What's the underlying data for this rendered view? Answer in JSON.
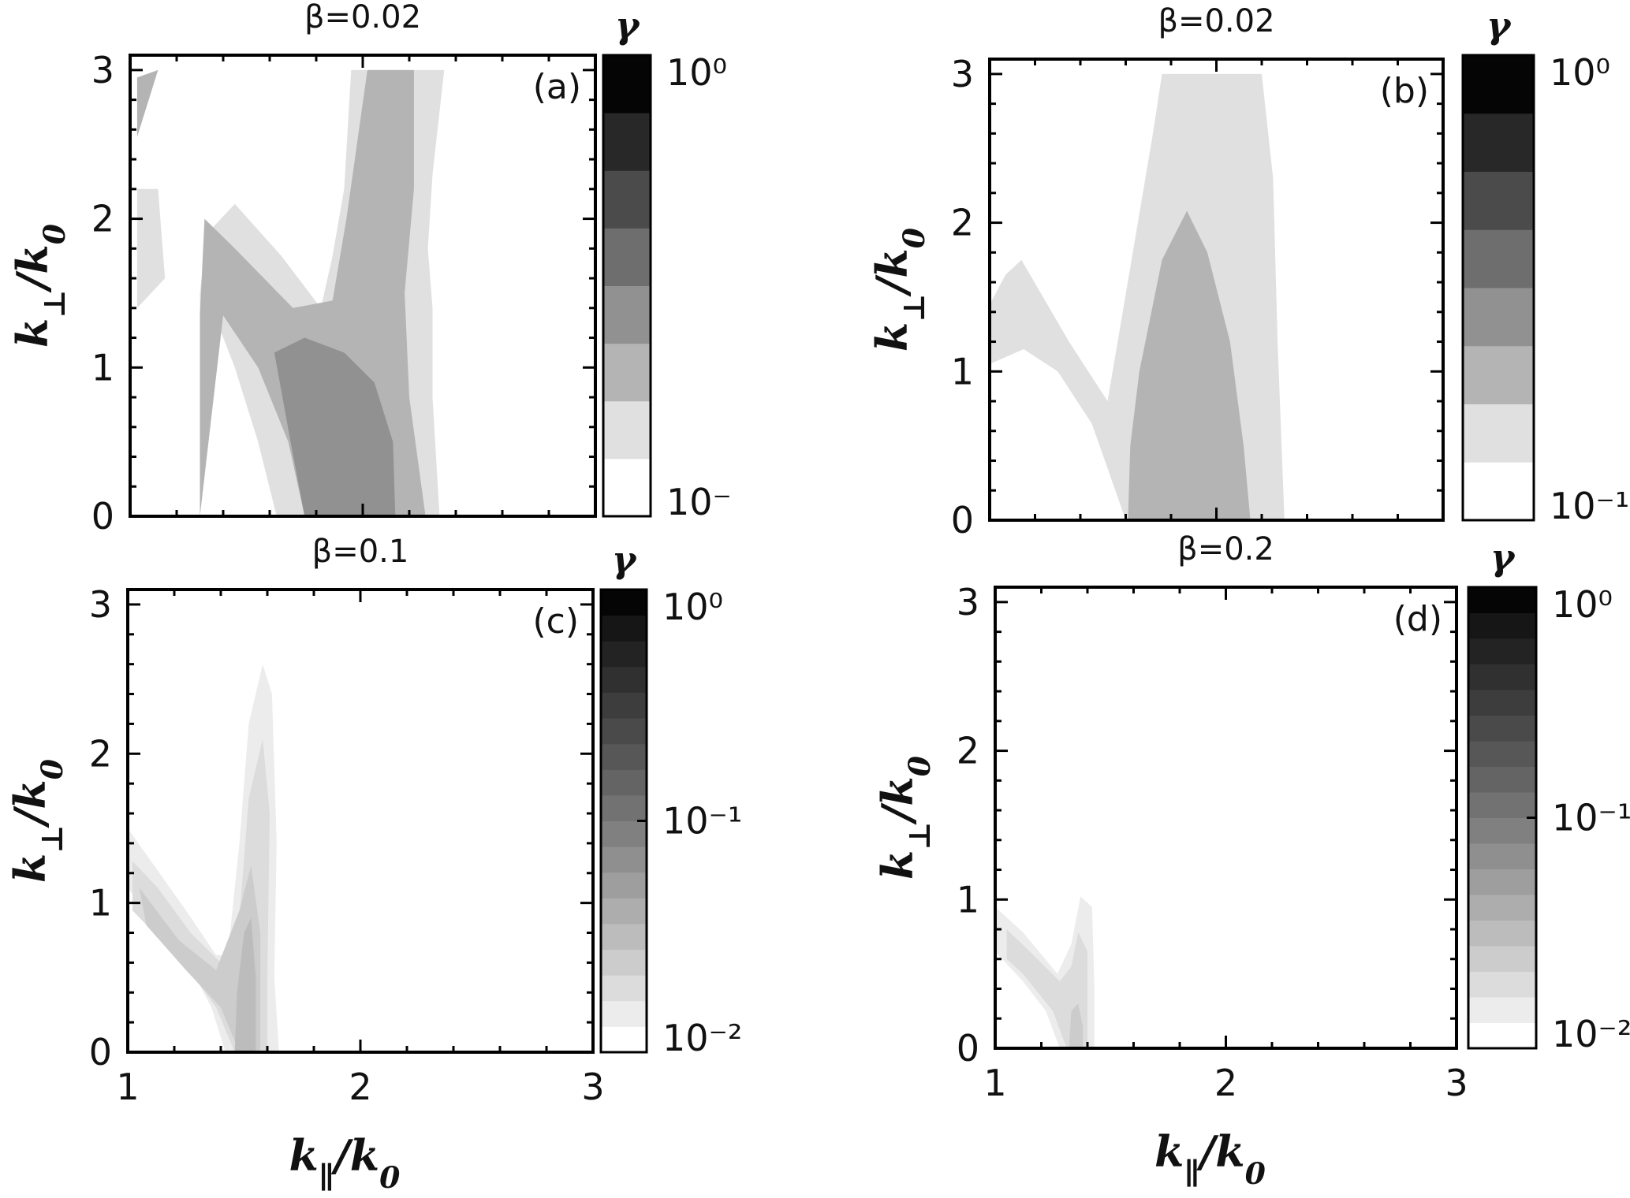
{
  "chart_data": [
    {
      "type": "heatmap",
      "panel_label": "(a)",
      "title": "β=0.02",
      "xlabel": "",
      "ylabel": "k⊥/k0",
      "xlim": [
        1,
        3
      ],
      "ylim": [
        0,
        3.1
      ],
      "xticks": [],
      "yticks": [
        "0",
        "1",
        "2",
        "3"
      ],
      "colorbar": {
        "label": "γ",
        "scale": "log",
        "levels": [
          "#ffffff",
          "#e0e0e0",
          "#b4b4b4",
          "#919191",
          "#6e6e6e",
          "#4b4b4b",
          "#282828",
          "#050505"
        ],
        "tick_labels": [
          "10⁰",
          "10⁻"
        ]
      },
      "regions": [
        {
          "level": 1,
          "description": "light outer band",
          "polygons": [
            [
              [
                1.3,
                0
              ],
              [
                1.3,
                1.5
              ],
              [
                1.33,
                1.9
              ],
              [
                1.45,
                2.1
              ],
              [
                1.65,
                1.75
              ],
              [
                1.82,
                1.4
              ],
              [
                1.87,
                1.75
              ],
              [
                1.92,
                2.2
              ],
              [
                1.95,
                3.0
              ],
              [
                2.35,
                3.0
              ],
              [
                2.3,
                2.3
              ],
              [
                2.28,
                1.8
              ],
              [
                2.3,
                1.4
              ],
              [
                2.3,
                0.8
              ],
              [
                2.33,
                0
              ],
              [
                1.63,
                0
              ],
              [
                1.55,
                0.5
              ],
              [
                1.45,
                1.0
              ],
              [
                1.35,
                1.4
              ]
            ],
            [
              [
                1.03,
                1.4
              ],
              [
                1.03,
                2.2
              ],
              [
                1.12,
                2.2
              ],
              [
                1.15,
                1.6
              ]
            ]
          ]
        },
        {
          "level": 2,
          "description": "middle band",
          "polygons": [
            [
              [
                1.3,
                0
              ],
              [
                1.3,
                1.35
              ],
              [
                1.32,
                2.0
              ],
              [
                1.45,
                1.8
              ],
              [
                1.7,
                1.4
              ],
              [
                1.87,
                1.45
              ],
              [
                1.93,
                2.0
              ],
              [
                2.02,
                3.0
              ],
              [
                2.22,
                3.0
              ],
              [
                2.22,
                2.2
              ],
              [
                2.18,
                1.5
              ],
              [
                2.2,
                0.8
              ],
              [
                2.27,
                0
              ],
              [
                1.75,
                0
              ],
              [
                1.68,
                0.5
              ],
              [
                1.55,
                1.0
              ],
              [
                1.4,
                1.35
              ]
            ],
            [
              [
                1.03,
                2.55
              ],
              [
                1.03,
                2.95
              ],
              [
                1.12,
                3.0
              ]
            ]
          ]
        },
        {
          "level": 3,
          "description": "darker core",
          "polygons": [
            [
              [
                1.75,
                0
              ],
              [
                1.69,
                0.5
              ],
              [
                1.62,
                1.1
              ],
              [
                1.75,
                1.2
              ],
              [
                1.92,
                1.1
              ],
              [
                2.05,
                0.9
              ],
              [
                2.13,
                0.5
              ],
              [
                2.14,
                0
              ]
            ]
          ]
        }
      ]
    },
    {
      "type": "heatmap",
      "panel_label": "(b)",
      "title": "β=0.02",
      "xlabel": "",
      "ylabel": "k⊥/k0",
      "xlim": [
        1,
        3
      ],
      "ylim": [
        0,
        3.1
      ],
      "xticks": [],
      "yticks": [
        "0",
        "1",
        "2",
        "3"
      ],
      "colorbar": {
        "label": "γ",
        "scale": "log",
        "levels": [
          "#ffffff",
          "#e0e0e0",
          "#b4b4b4",
          "#919191",
          "#6e6e6e",
          "#4b4b4b",
          "#282828",
          "#050505"
        ],
        "tick_labels": [
          "10⁰",
          "10⁻¹"
        ]
      },
      "regions": [
        {
          "level": 1,
          "description": "light outer band",
          "polygons": [
            [
              [
                1.0,
                1.45
              ],
              [
                1.07,
                1.65
              ],
              [
                1.14,
                1.75
              ],
              [
                1.35,
                1.2
              ],
              [
                1.52,
                0.8
              ],
              [
                1.62,
                1.7
              ],
              [
                1.72,
                2.6
              ],
              [
                1.76,
                3.0
              ],
              [
                2.2,
                3.0
              ],
              [
                2.25,
                2.3
              ],
              [
                2.27,
                1.2
              ],
              [
                2.3,
                0
              ],
              [
                1.6,
                0
              ],
              [
                1.52,
                0.35
              ],
              [
                1.45,
                0.65
              ],
              [
                1.3,
                1.0
              ],
              [
                1.15,
                1.15
              ],
              [
                1.0,
                1.05
              ]
            ]
          ]
        },
        {
          "level": 2,
          "description": "middle core",
          "polygons": [
            [
              [
                1.61,
                0
              ],
              [
                1.62,
                0.5
              ],
              [
                1.66,
                1.0
              ],
              [
                1.76,
                1.75
              ],
              [
                1.87,
                2.08
              ],
              [
                1.96,
                1.8
              ],
              [
                2.06,
                1.2
              ],
              [
                2.12,
                0.5
              ],
              [
                2.15,
                0
              ]
            ]
          ]
        }
      ]
    },
    {
      "type": "heatmap",
      "panel_label": "(c)",
      "title": "β=0.1",
      "xlabel": "k∥/k0",
      "ylabel": "k⊥/k0",
      "xlim": [
        1,
        3
      ],
      "ylim": [
        0,
        3.1
      ],
      "xticks": [
        "1",
        "2",
        "3"
      ],
      "yticks": [
        "0",
        "1",
        "2",
        "3"
      ],
      "colorbar": {
        "label": "γ",
        "scale": "log",
        "levels": [
          "#ffffff",
          "#ececec",
          "#dcdcdc",
          "#cccccc",
          "#bcbcbc",
          "#adadad",
          "#9e9e9e",
          "#8f8f8f",
          "#808080",
          "#727272",
          "#646464",
          "#575757",
          "#4a4a4a",
          "#3d3d3d",
          "#303030",
          "#232323",
          "#161616",
          "#050505"
        ],
        "tick_labels": [
          "10⁰",
          "10⁻¹",
          "10⁻²"
        ]
      },
      "regions": [
        {
          "level": 1,
          "description": "outer band",
          "polygons": [
            [
              [
                1.0,
                1.5
              ],
              [
                1.1,
                1.28
              ],
              [
                1.25,
                0.95
              ],
              [
                1.38,
                0.65
              ],
              [
                1.43,
                0.65
              ],
              [
                1.48,
                1.4
              ],
              [
                1.52,
                2.2
              ],
              [
                1.58,
                2.6
              ],
              [
                1.62,
                2.4
              ],
              [
                1.64,
                1.4
              ],
              [
                1.63,
                0.5
              ],
              [
                1.65,
                0
              ],
              [
                1.42,
                0
              ],
              [
                1.36,
                0.3
              ],
              [
                1.25,
                0.62
              ],
              [
                1.1,
                0.9
              ],
              [
                1.0,
                1.1
              ]
            ]
          ]
        },
        {
          "level": 2,
          "description": "inner band",
          "polygons": [
            [
              [
                1.02,
                1.28
              ],
              [
                1.13,
                1.1
              ],
              [
                1.27,
                0.8
              ],
              [
                1.4,
                0.6
              ],
              [
                1.48,
                0.9
              ],
              [
                1.52,
                1.7
              ],
              [
                1.58,
                2.1
              ],
              [
                1.61,
                1.6
              ],
              [
                1.6,
                0.5
              ],
              [
                1.6,
                0
              ],
              [
                1.46,
                0
              ],
              [
                1.38,
                0.3
              ],
              [
                1.25,
                0.58
              ],
              [
                1.1,
                0.82
              ],
              [
                1.02,
                0.95
              ]
            ]
          ]
        },
        {
          "level": 3,
          "description": "core",
          "polygons": [
            [
              [
                1.05,
                1.1
              ],
              [
                1.22,
                0.75
              ],
              [
                1.38,
                0.55
              ],
              [
                1.48,
                0.95
              ],
              [
                1.53,
                1.25
              ],
              [
                1.57,
                0.8
              ],
              [
                1.57,
                0
              ],
              [
                1.48,
                0
              ],
              [
                1.4,
                0.3
              ],
              [
                1.25,
                0.55
              ],
              [
                1.08,
                0.85
              ]
            ]
          ]
        },
        {
          "level": 4,
          "description": "inner core",
          "polygons": [
            [
              [
                1.46,
                0
              ],
              [
                1.47,
                0.4
              ],
              [
                1.5,
                0.8
              ],
              [
                1.53,
                0.9
              ],
              [
                1.55,
                0.5
              ],
              [
                1.55,
                0
              ]
            ]
          ]
        }
      ]
    },
    {
      "type": "heatmap",
      "panel_label": "(d)",
      "title": "β=0.2",
      "xlabel": "k∥/k0",
      "ylabel": "k⊥/k0",
      "xlim": [
        1,
        3
      ],
      "ylim": [
        0,
        3.1
      ],
      "xticks": [
        "1",
        "2",
        "3"
      ],
      "yticks": [
        "0",
        "1",
        "2",
        "3"
      ],
      "colorbar": {
        "label": "γ",
        "scale": "log",
        "levels": [
          "#ffffff",
          "#ececec",
          "#dcdcdc",
          "#cccccc",
          "#bcbcbc",
          "#adadad",
          "#9e9e9e",
          "#8f8f8f",
          "#808080",
          "#727272",
          "#646464",
          "#575757",
          "#4a4a4a",
          "#3d3d3d",
          "#303030",
          "#232323",
          "#161616",
          "#050505"
        ],
        "tick_labels": [
          "10⁰",
          "10⁻¹",
          "10⁻²"
        ]
      },
      "regions": [
        {
          "level": 1,
          "description": "outer band",
          "polygons": [
            [
              [
                1.0,
                0.95
              ],
              [
                1.12,
                0.78
              ],
              [
                1.27,
                0.5
              ],
              [
                1.33,
                0.7
              ],
              [
                1.37,
                1.02
              ],
              [
                1.42,
                0.95
              ],
              [
                1.43,
                0.4
              ],
              [
                1.43,
                0
              ],
              [
                1.28,
                0
              ],
              [
                1.22,
                0.25
              ],
              [
                1.12,
                0.45
              ],
              [
                1.0,
                0.65
              ]
            ]
          ]
        },
        {
          "level": 2,
          "description": "inner band",
          "polygons": [
            [
              [
                1.05,
                0.8
              ],
              [
                1.17,
                0.62
              ],
              [
                1.28,
                0.45
              ],
              [
                1.33,
                0.55
              ],
              [
                1.36,
                0.78
              ],
              [
                1.4,
                0.65
              ],
              [
                1.4,
                0
              ],
              [
                1.31,
                0
              ],
              [
                1.25,
                0.25
              ],
              [
                1.12,
                0.5
              ],
              [
                1.05,
                0.6
              ]
            ]
          ]
        },
        {
          "level": 3,
          "description": "core",
          "polygons": [
            [
              [
                1.32,
                0
              ],
              [
                1.33,
                0.25
              ],
              [
                1.36,
                0.3
              ],
              [
                1.38,
                0.15
              ],
              [
                1.38,
                0
              ]
            ]
          ]
        }
      ]
    }
  ]
}
